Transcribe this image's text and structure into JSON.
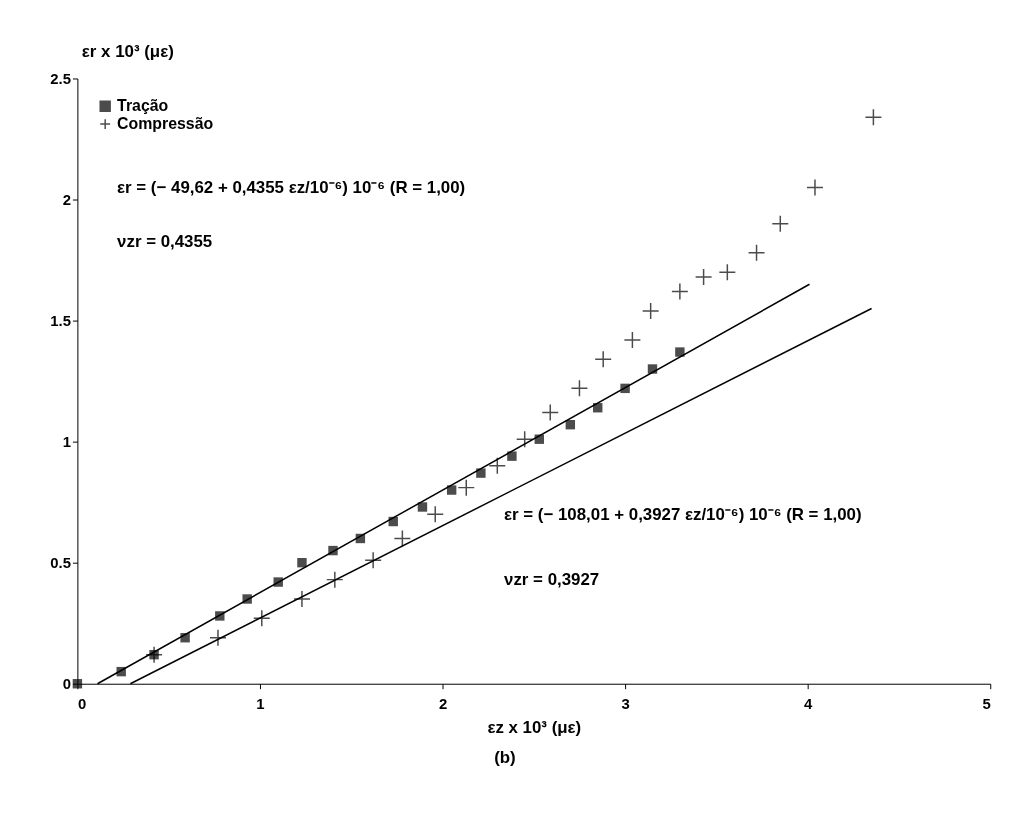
{
  "chart_data": {
    "type": "scatter",
    "xlabel": "εz x 10³ (με)",
    "ylabel": "εr x 10³ (με)",
    "xlim": [
      0,
      5
    ],
    "ylim": [
      0,
      2.5
    ],
    "xticks": [
      0,
      1,
      2,
      3,
      4,
      5
    ],
    "yticks": [
      0,
      0.5,
      1,
      1.5,
      2,
      2.5
    ],
    "grid": false,
    "legend": "top left",
    "series": [
      {
        "name": "Tração",
        "marker": "square",
        "color": "#000000",
        "x": [
          0,
          0.24,
          0.42,
          0.59,
          0.78,
          0.93,
          1.1,
          1.23,
          1.4,
          1.55,
          1.73,
          1.89,
          2.05,
          2.21,
          2.38,
          2.53,
          2.7,
          2.85,
          3.0,
          3.15,
          3.3
        ],
        "values": [
          0,
          0.05,
          0.12,
          0.19,
          0.28,
          0.35,
          0.42,
          0.5,
          0.55,
          0.6,
          0.67,
          0.73,
          0.8,
          0.87,
          0.94,
          1.01,
          1.07,
          1.14,
          1.22,
          1.3,
          1.37
        ]
      },
      {
        "name": "Compressão",
        "marker": "cross",
        "color": "#000000",
        "x": [
          0.42,
          0.77,
          1.01,
          1.23,
          1.41,
          1.62,
          1.78,
          1.96,
          2.13,
          2.3,
          2.45,
          2.59,
          2.75,
          2.88,
          3.04,
          3.14,
          3.3,
          3.43,
          3.56,
          3.72,
          3.85,
          4.04,
          4.36
        ],
        "values": [
          0.12,
          0.19,
          0.27,
          0.35,
          0.43,
          0.51,
          0.6,
          0.7,
          0.81,
          0.9,
          1.01,
          1.12,
          1.22,
          1.34,
          1.42,
          1.54,
          1.62,
          1.68,
          1.7,
          1.78,
          1.9,
          2.05,
          2.34
        ]
      },
      {
        "type": "line",
        "line_style": "solid",
        "color": "#000000",
        "x": [
          0.11,
          4.01
        ],
        "values": [
          0,
          1.65
        ]
      },
      {
        "type": "line",
        "line_style": "solid",
        "color": "#000000",
        "x": [
          0.29,
          4.35
        ],
        "values": [
          0,
          1.55
        ]
      }
    ],
    "annotations": [
      "εr = (− 49,62 + 0,4355 εz/10⁻⁶) 10⁻⁶ (R = 1,00)",
      "νzr = 0,4355",
      "εr = (− 108,01 + 0,3927 εz/10⁻⁶) 10⁻⁶ (R = 1,00)",
      "νzr = 0,3927",
      "(b)"
    ]
  }
}
